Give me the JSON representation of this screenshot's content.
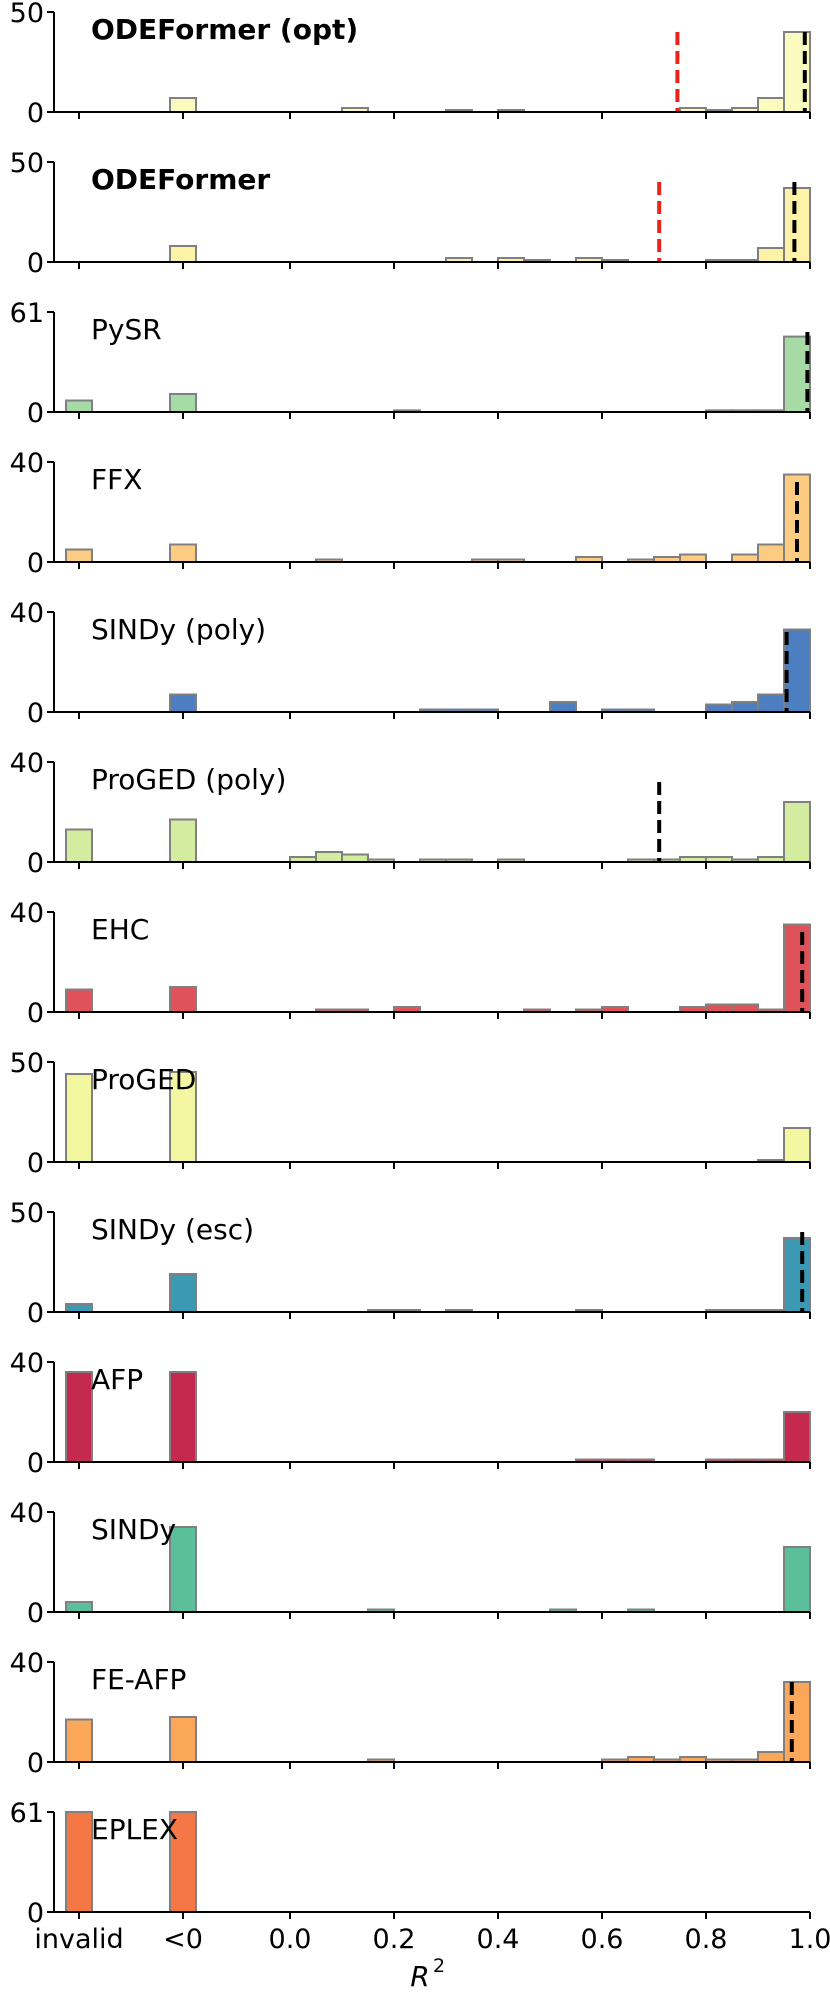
{
  "chart_data": {
    "type": "bar",
    "title": "",
    "xlabel": "R",
    "xlabel_superscript": "2",
    "bins": [
      "invalid",
      "<0",
      "0.00-0.05",
      "0.05-0.10",
      "0.10-0.15",
      "0.15-0.20",
      "0.20-0.25",
      "0.25-0.30",
      "0.30-0.35",
      "0.35-0.40",
      "0.40-0.45",
      "0.45-0.50",
      "0.50-0.55",
      "0.55-0.60",
      "0.60-0.65",
      "0.65-0.70",
      "0.70-0.75",
      "0.75-0.80",
      "0.80-0.85",
      "0.85-0.90",
      "0.90-0.95",
      "0.95-1.00"
    ],
    "x_tick_labels": [
      "invalid",
      "<0",
      "0.0",
      "0.2",
      "0.4",
      "0.6",
      "0.8",
      "1.0"
    ],
    "panels": [
      {
        "name": "ODEFormer (opt)",
        "bold": true,
        "color": "#fcfbbf",
        "ylim": [
          0,
          50
        ],
        "yticks": [
          "0",
          "50"
        ],
        "values": [
          0,
          7,
          0,
          0,
          2,
          0,
          0,
          0,
          1,
          0,
          1,
          0,
          0,
          0,
          0,
          0,
          0,
          2,
          1,
          2,
          7,
          40
        ],
        "median": 0.99,
        "mean": 0.745
      },
      {
        "name": "ODEFormer",
        "bold": true,
        "color": "#fdf3a8",
        "ylim": [
          0,
          50
        ],
        "yticks": [
          "0",
          "50"
        ],
        "values": [
          0,
          8,
          0,
          0,
          0,
          0,
          0,
          0,
          2,
          0,
          2,
          1,
          0,
          2,
          1,
          0,
          0,
          0,
          1,
          1,
          7,
          37
        ],
        "median": 0.97,
        "mean": 0.71
      },
      {
        "name": "PySR",
        "bold": false,
        "color": "#a6dba6",
        "ylim": [
          0,
          61
        ],
        "yticks": [
          "0",
          "61"
        ],
        "values": [
          7,
          11,
          0,
          0,
          0,
          0,
          1,
          0,
          0,
          0,
          0,
          0,
          0,
          0,
          0,
          0,
          0,
          0,
          1,
          1,
          1,
          46
        ],
        "median": 0.995
      },
      {
        "name": "FFX",
        "bold": false,
        "color": "#fdcc80",
        "ylim": [
          0,
          40
        ],
        "yticks": [
          "0",
          "40"
        ],
        "values": [
          5,
          7,
          0,
          1,
          0,
          0,
          0,
          0,
          0,
          1,
          1,
          0,
          0,
          2,
          0,
          1,
          2,
          3,
          0,
          3,
          7,
          35
        ],
        "median": 0.975
      },
      {
        "name": "SINDy (poly)",
        "bold": false,
        "color": "#4d7ec0",
        "ylim": [
          0,
          40
        ],
        "yticks": [
          "0",
          "40"
        ],
        "values": [
          0,
          7,
          0,
          0,
          0,
          0,
          0,
          1,
          1,
          1,
          0,
          0,
          4,
          0,
          1,
          1,
          0,
          0,
          3,
          4,
          7,
          33
        ],
        "median": 0.955
      },
      {
        "name": "ProGED (poly)",
        "bold": false,
        "color": "#d3eca0",
        "ylim": [
          0,
          40
        ],
        "yticks": [
          "0",
          "40"
        ],
        "values": [
          13,
          17,
          2,
          4,
          3,
          1,
          0,
          1,
          1,
          0,
          1,
          0,
          0,
          0,
          0,
          1,
          1,
          2,
          2,
          1,
          2,
          24
        ],
        "median": 0.71
      },
      {
        "name": "EHC",
        "bold": false,
        "color": "#e0525a",
        "ylim": [
          0,
          40
        ],
        "yticks": [
          "0",
          "40"
        ],
        "values": [
          9,
          10,
          0,
          1,
          1,
          0,
          2,
          0,
          0,
          0,
          0,
          1,
          0,
          1,
          2,
          0,
          0,
          2,
          3,
          3,
          1,
          35
        ],
        "median": 0.985
      },
      {
        "name": "ProGED",
        "bold": false,
        "color": "#f4f7a2",
        "ylim": [
          0,
          50
        ],
        "yticks": [
          "0",
          "50"
        ],
        "values": [
          44,
          45,
          0,
          0,
          0,
          0,
          0,
          0,
          0,
          0,
          0,
          0,
          0,
          0,
          0,
          0,
          0,
          0,
          0,
          0,
          1,
          17
        ]
      },
      {
        "name": "SINDy (esc)",
        "bold": false,
        "color": "#3b99b3",
        "ylim": [
          0,
          50
        ],
        "yticks": [
          "0",
          "50"
        ],
        "values": [
          4,
          19,
          0,
          0,
          0,
          1,
          1,
          0,
          1,
          0,
          0,
          0,
          0,
          1,
          0,
          0,
          0,
          0,
          1,
          1,
          1,
          37
        ],
        "median": 0.985
      },
      {
        "name": "AFP",
        "bold": false,
        "color": "#c52a4e",
        "ylim": [
          0,
          40
        ],
        "yticks": [
          "0",
          "40"
        ],
        "values": [
          36,
          36,
          0,
          0,
          0,
          0,
          0,
          0,
          0,
          0,
          0,
          0,
          0,
          1,
          1,
          1,
          0,
          0,
          1,
          1,
          1,
          20
        ]
      },
      {
        "name": "SINDy",
        "bold": false,
        "color": "#5cbf9b",
        "ylim": [
          0,
          40
        ],
        "yticks": [
          "0",
          "40"
        ],
        "values": [
          4,
          34,
          0,
          0,
          0,
          1,
          0,
          0,
          0,
          0,
          0,
          0,
          1,
          0,
          0,
          1,
          0,
          0,
          0,
          0,
          0,
          26
        ]
      },
      {
        "name": "FE-AFP",
        "bold": false,
        "color": "#fba75a",
        "ylim": [
          0,
          40
        ],
        "yticks": [
          "0",
          "40"
        ],
        "values": [
          17,
          18,
          0,
          0,
          0,
          1,
          0,
          0,
          0,
          0,
          0,
          0,
          0,
          0,
          1,
          2,
          1,
          2,
          1,
          1,
          4,
          32
        ],
        "median": 0.965
      },
      {
        "name": "EPLEX",
        "bold": false,
        "color": "#f47745",
        "ylim": [
          0,
          61
        ],
        "yticks": [
          "0",
          "61"
        ],
        "values": [
          61,
          61,
          0,
          0,
          0,
          0,
          0,
          0,
          0,
          0,
          0,
          0,
          0,
          0,
          0,
          0,
          0,
          0,
          0,
          0,
          0,
          0
        ]
      }
    ]
  }
}
